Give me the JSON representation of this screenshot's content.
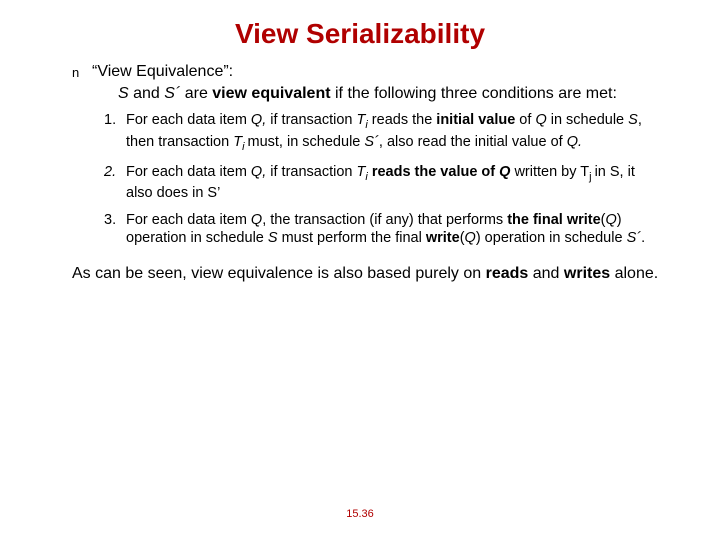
{
  "colors": {
    "title": "#b00000",
    "text": "#000000",
    "footer": "#b00000",
    "background": "#ffffff"
  },
  "title": "View Serializability",
  "bullet_marker": "n",
  "bullet_text": "“View Equivalence”:",
  "intro_pre": "S",
  "intro_mid1": " and ",
  "intro_S2": "S´",
  "intro_mid2": " are ",
  "intro_bold": "view equivalent",
  "intro_post": " if the following three conditions are met:",
  "items": {
    "n1": "1.",
    "t1a": "For each data item ",
    "t1Q": "Q,",
    "t1b": " if transaction ",
    "t1Ti": "T",
    "t1i": "i",
    "t1c": " reads the ",
    "t1bold": "initial value",
    "t1d": " of ",
    "t1Q2": "Q",
    "t1e": " in schedule ",
    "t1S": "S",
    "t1f": ", then transaction ",
    "t1Ti2": "T",
    "t1i2": "i ",
    "t1g": " must, in schedule ",
    "t1S2": "S´",
    "t1h": ", also read the initial value of ",
    "t1Q3": "Q.",
    "n2": "2.",
    "t2a": "For each data item ",
    "t2Q": "Q,",
    "t2b": " if transaction ",
    "t2Ti": "T",
    "t2i": "i",
    "t2c": " ",
    "t2bold": "reads the value of ",
    "t2Qb": "Q",
    "t2d": " written by T",
    "t2j": "j ",
    "t2e": " in S, it also does in S’",
    "n3": "3.",
    "t3a": "For each data item ",
    "t3Q": "Q",
    "t3b": ", the transaction (if any) that performs ",
    "t3bold1": "the final write",
    "t3p1o": "(",
    "t3p1q": "Q",
    "t3p1c": ")",
    "t3c": " operation in schedule ",
    "t3S": "S",
    "t3d": " must perform the final ",
    "t3bold2": "write",
    "t3p2o": "(",
    "t3p2q": "Q",
    "t3p2c": ")",
    "t3e": " operation in schedule ",
    "t3S2": "S´",
    "t3f": "."
  },
  "closing_a": "As can be seen, view equivalence is also based purely on ",
  "closing_b": "reads",
  "closing_c": " and ",
  "closing_d": "writes",
  "closing_e": " alone.",
  "footer": "15.36"
}
